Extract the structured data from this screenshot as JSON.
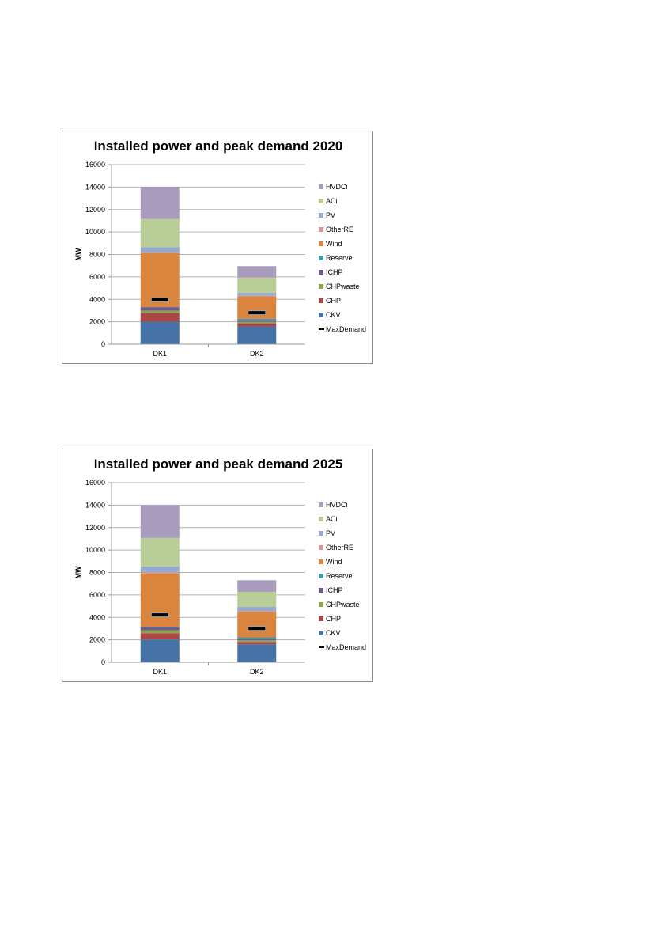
{
  "chart_data": [
    {
      "type": "bar",
      "stacked": true,
      "title": "Installed power and peak demand 2020",
      "ylabel": "MW",
      "xlabel": "",
      "ylim": [
        0,
        16000
      ],
      "yticks": [
        0,
        2000,
        4000,
        6000,
        8000,
        10000,
        12000,
        14000,
        16000
      ],
      "categories": [
        "DK1",
        "DK2"
      ],
      "grid": true,
      "legend": "right",
      "series": [
        {
          "name": "CKV",
          "color": "#4572A7",
          "values": [
            2000,
            1580
          ]
        },
        {
          "name": "CHP",
          "color": "#AA4643",
          "values": [
            780,
            280
          ]
        },
        {
          "name": "CHPwaste",
          "color": "#89A54E",
          "values": [
            220,
            140
          ]
        },
        {
          "name": "ICHP",
          "color": "#71588F",
          "values": [
            280,
            100
          ]
        },
        {
          "name": "Reserve",
          "color": "#4198AF",
          "values": [
            30,
            160
          ]
        },
        {
          "name": "Wind",
          "color": "#DB843D",
          "values": [
            4800,
            2010
          ]
        },
        {
          "name": "OtherRE",
          "color": "#D99694",
          "values": [
            70,
            50
          ]
        },
        {
          "name": "PV",
          "color": "#93A9CF",
          "values": [
            450,
            280
          ]
        },
        {
          "name": "ACi",
          "color": "#B9CD96",
          "values": [
            2530,
            1340
          ]
        },
        {
          "name": "HVDCi",
          "color": "#A99BBD",
          "values": [
            2870,
            1020
          ]
        }
      ],
      "line_series": {
        "name": "MaxDemand",
        "color": "#000000",
        "values": [
          3960,
          2810
        ]
      }
    },
    {
      "type": "bar",
      "stacked": true,
      "title": "Installed power and peak demand 2025",
      "ylabel": "MW",
      "xlabel": "",
      "ylim": [
        0,
        16000
      ],
      "yticks": [
        0,
        2000,
        4000,
        6000,
        8000,
        10000,
        12000,
        14000,
        16000
      ],
      "categories": [
        "DK1",
        "DK2"
      ],
      "grid": true,
      "legend": "right",
      "series": [
        {
          "name": "CKV",
          "color": "#4572A7",
          "values": [
            2030,
            1600
          ]
        },
        {
          "name": "CHP",
          "color": "#AA4643",
          "values": [
            560,
            220
          ]
        },
        {
          "name": "CHPwaste",
          "color": "#89A54E",
          "values": [
            260,
            140
          ]
        },
        {
          "name": "ICHP",
          "color": "#71588F",
          "values": [
            260,
            90
          ]
        },
        {
          "name": "Reserve",
          "color": "#4198AF",
          "values": [
            50,
            170
          ]
        },
        {
          "name": "Wind",
          "color": "#DB843D",
          "values": [
            4760,
            2280
          ]
        },
        {
          "name": "OtherRE",
          "color": "#D99694",
          "values": [
            80,
            50
          ]
        },
        {
          "name": "PV",
          "color": "#93A9CF",
          "values": [
            540,
            380
          ]
        },
        {
          "name": "ACi",
          "color": "#B9CD96",
          "values": [
            2540,
            1340
          ]
        },
        {
          "name": "HVDCi",
          "color": "#A99BBD",
          "values": [
            2910,
            1040
          ]
        }
      ],
      "line_series": {
        "name": "MaxDemand",
        "color": "#000000",
        "values": [
          4220,
          3020
        ]
      }
    }
  ]
}
